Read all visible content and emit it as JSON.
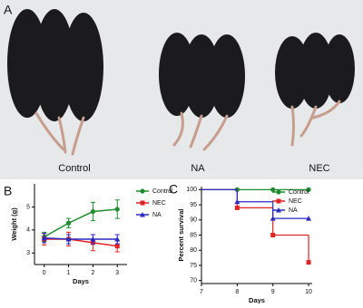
{
  "figure": {
    "panel": "A",
    "labels": [
      "Control",
      "NA",
      "NEC"
    ]
  },
  "chart_data": [
    {
      "type": "line",
      "panel": "B",
      "x_label": "Days",
      "y_label": "Weight (g)",
      "x": [
        0,
        1,
        2,
        3
      ],
      "xlim": [
        -0.4,
        3.4
      ],
      "xticks": [
        0,
        1,
        2,
        3
      ],
      "ylim": [
        2.5,
        6
      ],
      "yticks": [
        3,
        4,
        5
      ],
      "legend": "right",
      "series": [
        {
          "name": "Control",
          "color": "#1e8c2e",
          "marker": "circle",
          "values": [
            3.7,
            4.3,
            4.8,
            4.9
          ],
          "errors": [
            0.2,
            0.2,
            0.4,
            0.4
          ]
        },
        {
          "name": "NEC",
          "color": "#e02424",
          "marker": "square",
          "values": [
            3.6,
            3.6,
            3.45,
            3.3
          ],
          "errors": [
            0.25,
            0.3,
            0.35,
            0.25
          ]
        },
        {
          "name": "NA",
          "color": "#2a2ac0",
          "marker": "triangle",
          "values": [
            3.65,
            3.6,
            3.6,
            3.6
          ],
          "errors": [
            0.2,
            0.2,
            0.2,
            0.2
          ]
        }
      ]
    },
    {
      "type": "step",
      "panel": "C",
      "x_label": "Days",
      "y_label": "Percent survival",
      "x": [
        7,
        8,
        9,
        10
      ],
      "xlim": [
        7,
        10.1
      ],
      "xticks": [
        7,
        8,
        9,
        10
      ],
      "ylim": [
        69,
        101
      ],
      "yticks": [
        70,
        75,
        80,
        85,
        90,
        95,
        100
      ],
      "legend": "upper right",
      "series": [
        {
          "name": "Control",
          "color": "#1e8c2e",
          "marker": "circle",
          "values": [
            100,
            100,
            100,
            100
          ]
        },
        {
          "name": "NEC",
          "color": "#e02424",
          "marker": "square",
          "values": [
            100,
            94,
            85,
            76
          ]
        },
        {
          "name": "NA",
          "color": "#2a2ac0",
          "marker": "triangle",
          "values": [
            100,
            96,
            90.5,
            90.5
          ]
        }
      ]
    }
  ]
}
